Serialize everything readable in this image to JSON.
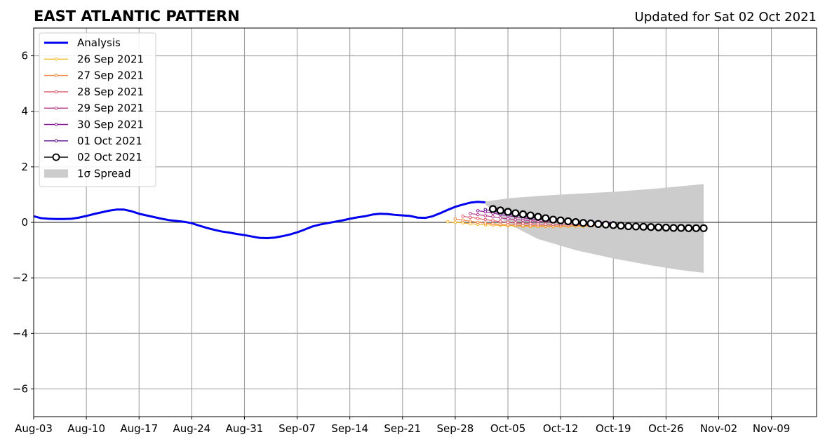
{
  "chart_data": {
    "type": "line",
    "title": "EAST ATLANTIC PATTERN",
    "subtitle": "Updated for Sat 02 Oct 2021",
    "xlabel": "",
    "ylabel": "",
    "xlim": [
      "2021-08-03",
      "2021-11-15"
    ],
    "ylim": [
      -7,
      7
    ],
    "x_ticks": [
      "2021-08-03",
      "2021-08-10",
      "2021-08-17",
      "2021-08-24",
      "2021-08-31",
      "2021-09-07",
      "2021-09-14",
      "2021-09-21",
      "2021-09-28",
      "2021-10-05",
      "2021-10-12",
      "2021-10-19",
      "2021-10-26",
      "2021-11-02",
      "2021-11-09"
    ],
    "x_tick_labels": [
      "Aug-03",
      "Aug-10",
      "Aug-17",
      "Aug-24",
      "Aug-31",
      "Sep-07",
      "Sep-14",
      "Sep-21",
      "Sep-28",
      "Oct-05",
      "Oct-12",
      "Oct-19",
      "Oct-26",
      "Nov-02",
      "Nov-09"
    ],
    "y_ticks": [
      -6,
      -4,
      -2,
      0,
      2,
      4,
      6
    ],
    "y_tick_labels": [
      "−6",
      "−4",
      "−2",
      "0",
      "2",
      "4",
      "6"
    ],
    "grid": true,
    "legend_position": "top-left",
    "analysis": {
      "name": "Analysis",
      "color": "#0000ee",
      "points": [
        [
          "2021-08-03",
          0.22
        ],
        [
          "2021-08-04",
          0.15
        ],
        [
          "2021-08-05",
          0.13
        ],
        [
          "2021-08-06",
          0.12
        ],
        [
          "2021-08-07",
          0.12
        ],
        [
          "2021-08-08",
          0.13
        ],
        [
          "2021-08-09",
          0.17
        ],
        [
          "2021-08-10",
          0.23
        ],
        [
          "2021-08-11",
          0.3
        ],
        [
          "2021-08-12",
          0.36
        ],
        [
          "2021-08-13",
          0.42
        ],
        [
          "2021-08-14",
          0.46
        ],
        [
          "2021-08-15",
          0.46
        ],
        [
          "2021-08-16",
          0.4
        ],
        [
          "2021-08-17",
          0.31
        ],
        [
          "2021-08-18",
          0.25
        ],
        [
          "2021-08-19",
          0.19
        ],
        [
          "2021-08-20",
          0.13
        ],
        [
          "2021-08-21",
          0.08
        ],
        [
          "2021-08-22",
          0.05
        ],
        [
          "2021-08-23",
          0.02
        ],
        [
          "2021-08-24",
          -0.03
        ],
        [
          "2021-08-25",
          -0.12
        ],
        [
          "2021-08-26",
          -0.2
        ],
        [
          "2021-08-27",
          -0.27
        ],
        [
          "2021-08-28",
          -0.33
        ],
        [
          "2021-08-29",
          -0.37
        ],
        [
          "2021-08-30",
          -0.42
        ],
        [
          "2021-08-31",
          -0.46
        ],
        [
          "2021-09-01",
          -0.51
        ],
        [
          "2021-09-02",
          -0.56
        ],
        [
          "2021-09-03",
          -0.57
        ],
        [
          "2021-09-04",
          -0.55
        ],
        [
          "2021-09-05",
          -0.5
        ],
        [
          "2021-09-06",
          -0.44
        ],
        [
          "2021-09-07",
          -0.36
        ],
        [
          "2021-09-08",
          -0.26
        ],
        [
          "2021-09-09",
          -0.15
        ],
        [
          "2021-09-10",
          -0.08
        ],
        [
          "2021-09-11",
          -0.03
        ],
        [
          "2021-09-12",
          0.02
        ],
        [
          "2021-09-13",
          0.07
        ],
        [
          "2021-09-14",
          0.13
        ],
        [
          "2021-09-15",
          0.18
        ],
        [
          "2021-09-16",
          0.22
        ],
        [
          "2021-09-17",
          0.28
        ],
        [
          "2021-09-18",
          0.31
        ],
        [
          "2021-09-19",
          0.3
        ],
        [
          "2021-09-20",
          0.27
        ],
        [
          "2021-09-21",
          0.25
        ],
        [
          "2021-09-22",
          0.23
        ],
        [
          "2021-09-23",
          0.17
        ],
        [
          "2021-09-24",
          0.16
        ],
        [
          "2021-09-25",
          0.22
        ],
        [
          "2021-09-26",
          0.33
        ],
        [
          "2021-09-27",
          0.45
        ],
        [
          "2021-09-28",
          0.56
        ],
        [
          "2021-09-29",
          0.64
        ],
        [
          "2021-09-30",
          0.71
        ],
        [
          "2021-10-01",
          0.74
        ],
        [
          "2021-10-02",
          0.72
        ]
      ]
    },
    "forecasts": [
      {
        "name": "26 Sep 2021",
        "color": "#f5b729",
        "start": "2021-09-27",
        "values": [
          0.02,
          0.0,
          -0.02,
          -0.05,
          -0.07,
          -0.09,
          -0.1,
          -0.11,
          -0.12,
          -0.13,
          -0.14,
          -0.15,
          -0.15,
          -0.15,
          -0.15,
          -0.15,
          -0.15,
          -0.14,
          -0.14,
          -0.13,
          -0.13,
          -0.12,
          -0.11
        ]
      },
      {
        "name": "27 Sep 2021",
        "color": "#f0853f",
        "start": "2021-09-28",
        "values": [
          0.12,
          0.08,
          0.04,
          0.0,
          -0.03,
          -0.05,
          -0.07,
          -0.09,
          -0.1,
          -0.11,
          -0.12,
          -0.12,
          -0.13,
          -0.13,
          -0.13,
          -0.13,
          -0.12,
          -0.12,
          -0.12,
          -0.11,
          -0.11
        ]
      },
      {
        "name": "28 Sep 2021",
        "color": "#de5a6a",
        "start": "2021-09-29",
        "values": [
          0.22,
          0.18,
          0.14,
          0.1,
          0.06,
          0.03,
          0.0,
          -0.02,
          -0.04,
          -0.05,
          -0.06,
          -0.07,
          -0.07,
          -0.08,
          -0.08,
          -0.08,
          -0.08,
          -0.08,
          -0.08,
          -0.08
        ]
      },
      {
        "name": "29 Sep 2021",
        "color": "#b7398c",
        "start": "2021-09-30",
        "values": [
          0.32,
          0.28,
          0.24,
          0.2,
          0.16,
          0.13,
          0.1,
          0.08,
          0.06,
          0.04,
          0.03,
          0.02,
          0.01,
          0.0,
          -0.01,
          -0.02,
          -0.02,
          -0.03,
          -0.03,
          -0.04
        ]
      },
      {
        "name": "30 Sep 2021",
        "color": "#8b1c9a",
        "start": "2021-10-01",
        "values": [
          0.42,
          0.38,
          0.33,
          0.28,
          0.24,
          0.2,
          0.16,
          0.13,
          0.1,
          0.08,
          0.06,
          0.04,
          0.03,
          0.02,
          0.01,
          0.0,
          -0.01,
          -0.02,
          -0.03
        ]
      },
      {
        "name": "01 Oct 2021",
        "color": "#5a0f8a",
        "start": "2021-10-02",
        "values": [
          0.46,
          0.4,
          0.35,
          0.3,
          0.26,
          0.22,
          0.18,
          0.15,
          0.12,
          0.1,
          0.08,
          0.06,
          0.04,
          0.03,
          0.02,
          0.01,
          0.0,
          -0.01
        ]
      },
      {
        "name": "02 Oct 2021",
        "color": "#000000",
        "marker": "large-open-circle",
        "start": "2021-10-03",
        "values": [
          0.48,
          0.43,
          0.38,
          0.33,
          0.29,
          0.25,
          0.2,
          0.15,
          0.1,
          0.07,
          0.04,
          0.01,
          -0.02,
          -0.04,
          -0.06,
          -0.08,
          -0.1,
          -0.12,
          -0.14,
          -0.15,
          -0.16,
          -0.17,
          -0.18,
          -0.19,
          -0.2,
          -0.2,
          -0.21,
          -0.21,
          -0.21
        ]
      }
    ],
    "spread": {
      "name": "1σ Spread",
      "color": "#cccccc",
      "x": [
        "2021-10-02",
        "2021-10-05",
        "2021-10-09",
        "2021-10-14",
        "2021-10-19",
        "2021-10-24",
        "2021-10-28",
        "2021-10-31"
      ],
      "upper": [
        0.75,
        0.87,
        0.95,
        1.03,
        1.1,
        1.2,
        1.3,
        1.38
      ],
      "lower": [
        0.65,
        -0.05,
        -0.6,
        -1.0,
        -1.3,
        -1.55,
        -1.72,
        -1.82
      ]
    }
  }
}
